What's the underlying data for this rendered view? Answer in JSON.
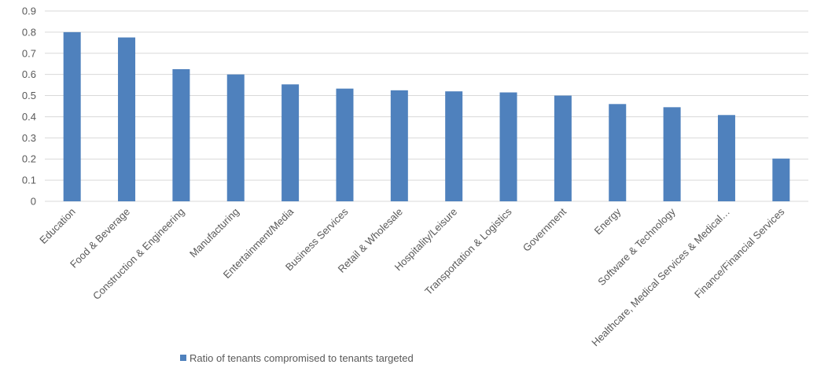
{
  "chart_data": {
    "type": "bar",
    "categories": [
      "Education",
      "Food & Beverage",
      "Construction & Engineering",
      "Manufacturing",
      "Entertainment/Media",
      "Business Services",
      "Retail & Wholesale",
      "Hospitality/Leisure",
      "Transportation & Logistics",
      "Government",
      "Energy",
      "Software & Technology",
      "Healthcare, Medical Services & Medical…",
      "Finance/Financial Services"
    ],
    "series": [
      {
        "name": "Ratio of tenants compromised to tenants targeted",
        "values": [
          0.8,
          0.775,
          0.625,
          0.6,
          0.553,
          0.533,
          0.525,
          0.52,
          0.515,
          0.5,
          0.46,
          0.445,
          0.408,
          0.202
        ],
        "color": "#4f81bd"
      }
    ],
    "yticks": [
      "0",
      "0.1",
      "0.2",
      "0.3",
      "0.4",
      "0.5",
      "0.6",
      "0.7",
      "0.8",
      "0.9"
    ],
    "ylim": [
      0,
      0.9
    ],
    "grid": true,
    "legend_position": "bottom-left",
    "title": "",
    "xlabel": "",
    "ylabel": ""
  }
}
